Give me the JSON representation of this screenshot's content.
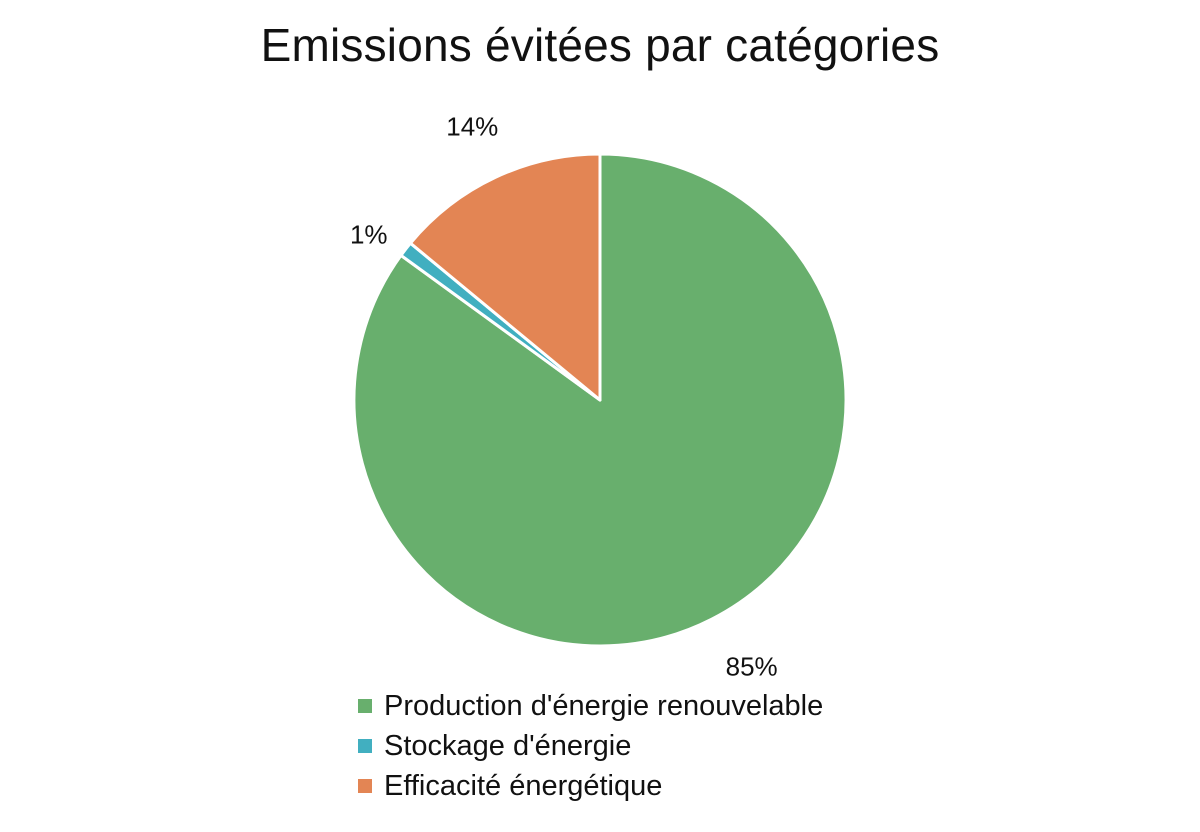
{
  "chart_data": {
    "type": "pie",
    "title": "Emissions évitées par catégories",
    "categories": [
      "Production d'énergie renouvelable",
      "Stockage d'énergie",
      "Efficacité énergétique"
    ],
    "values": [
      85,
      1,
      14
    ],
    "data_labels": [
      "85%",
      "1%",
      "14%"
    ],
    "colors": [
      "#68AF6D",
      "#41AFC0",
      "#E38554"
    ],
    "start_angle_deg": 0,
    "direction": "clockwise",
    "legend_position": "bottom"
  }
}
